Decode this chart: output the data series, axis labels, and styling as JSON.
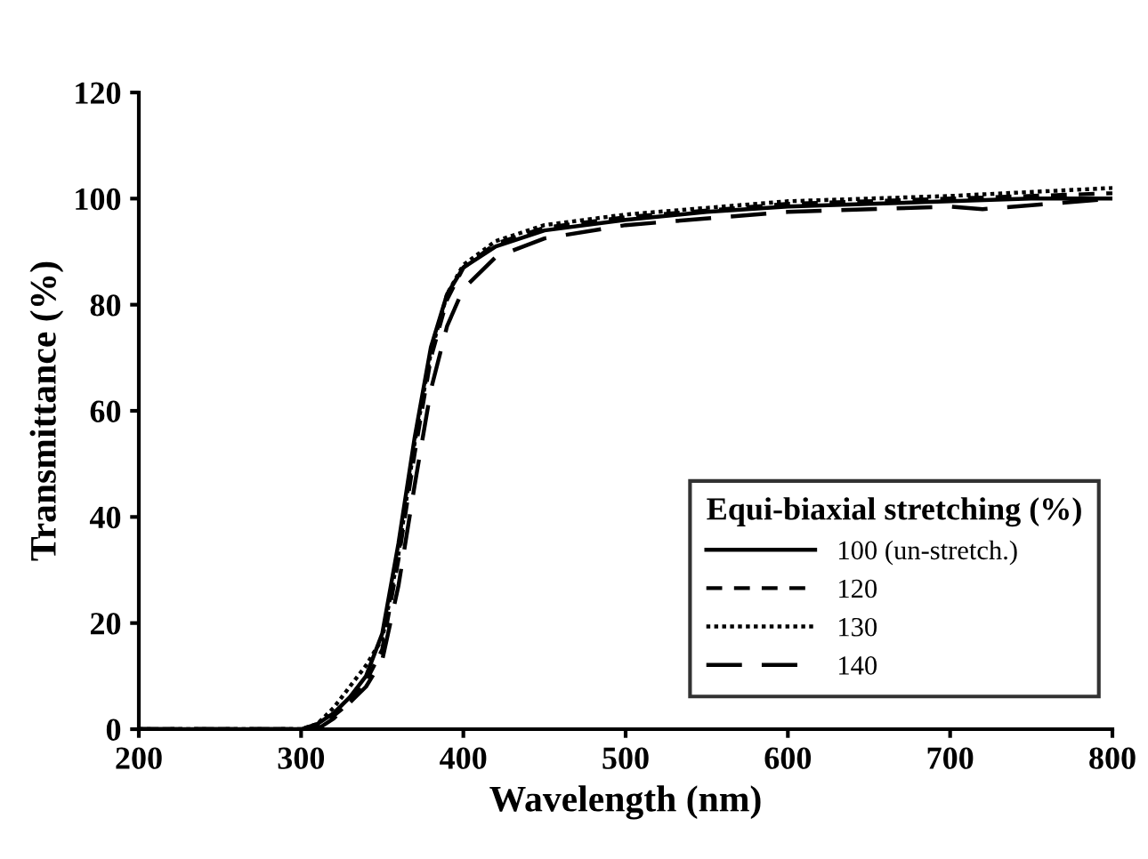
{
  "chart_data": {
    "type": "line",
    "xlabel": "Wavelength (nm)",
    "ylabel": "Transmittance (%)",
    "legend_title": "Equi-biaxial stretching (%)",
    "xlim": [
      200,
      800
    ],
    "xticks": [
      200,
      300,
      400,
      500,
      600,
      700,
      800
    ],
    "ylim": [
      0,
      120
    ],
    "yticks": [
      0,
      20,
      40,
      60,
      80,
      100,
      120
    ],
    "grid": false,
    "legend": "bottom right",
    "marker": "none",
    "series": [
      {
        "name": "100 (un-stretch.)",
        "color": "#000000",
        "line_style": "solid",
        "x": [
          200,
          300,
          310,
          320,
          330,
          340,
          350,
          360,
          370,
          380,
          390,
          400,
          420,
          450,
          500,
          550,
          600,
          650,
          700,
          750,
          800
        ],
        "values": [
          0,
          0,
          1,
          3,
          6,
          10,
          18,
          35,
          55,
          72,
          82,
          87,
          91,
          94,
          96,
          97.5,
          98.5,
          99,
          99.5,
          100,
          100
        ]
      },
      {
        "name": "120",
        "color": "#000000",
        "line_style": "dashed",
        "x": [
          200,
          305,
          310,
          320,
          330,
          340,
          350,
          360,
          370,
          380,
          390,
          400,
          420,
          450,
          500,
          600,
          700,
          800
        ],
        "values": [
          0,
          0,
          0.5,
          2.5,
          5,
          9,
          15,
          32,
          52,
          70,
          81,
          87,
          91.5,
          94.5,
          96.5,
          99,
          100,
          101
        ]
      },
      {
        "name": "130",
        "color": "#000000",
        "line_style": "dotted",
        "x": [
          200,
          300,
          310,
          320,
          330,
          340,
          350,
          360,
          370,
          380,
          390,
          400,
          420,
          450,
          500,
          600,
          700,
          800
        ],
        "values": [
          0,
          0,
          1,
          4,
          8,
          12,
          17,
          33,
          54,
          71,
          82,
          87.5,
          92,
          95,
          97,
          99.5,
          100.5,
          102
        ]
      },
      {
        "name": "140",
        "color": "#000000",
        "line_style": "longdash",
        "x": [
          200,
          310,
          320,
          330,
          340,
          350,
          360,
          370,
          380,
          390,
          400,
          420,
          450,
          500,
          600,
          700,
          720,
          800
        ],
        "values": [
          0,
          0,
          2,
          5,
          8,
          13,
          27,
          46,
          64,
          76,
          83,
          89,
          92.5,
          95,
          97.5,
          98.5,
          98,
          100
        ]
      }
    ]
  }
}
